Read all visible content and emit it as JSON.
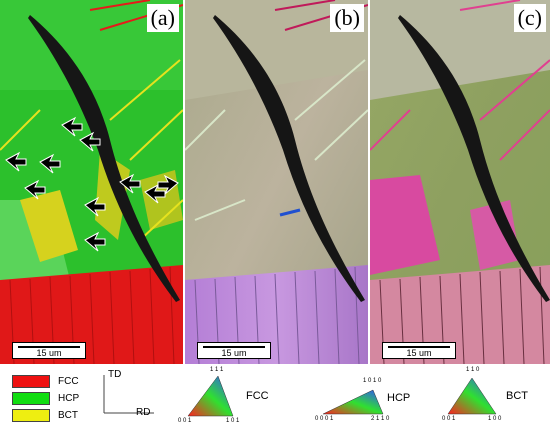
{
  "panels": [
    {
      "label": "(a)",
      "scale": "15 um"
    },
    {
      "label": "(b)",
      "scale": "15 um"
    },
    {
      "label": "(c)",
      "scale": "15 um"
    }
  ],
  "legend": [
    {
      "label": "FCC",
      "color": "#ee1111"
    },
    {
      "label": "HCP",
      "color": "#11dd11"
    },
    {
      "label": "BCT",
      "color": "#eeee11"
    }
  ],
  "axes": {
    "vertical": "TD",
    "horizontal": "RD"
  },
  "ipf": [
    {
      "name": "FCC",
      "top": "1 1 1",
      "left": "0 0 1",
      "right": "1 0 1"
    },
    {
      "name": "HCP",
      "top": "1 0 1 0",
      "left": "0 0 0 1",
      "right": "2 1 1 0"
    },
    {
      "name": "BCT",
      "top": "1 1 0",
      "left": "0 0 1",
      "right": "1 0 0"
    }
  ]
}
